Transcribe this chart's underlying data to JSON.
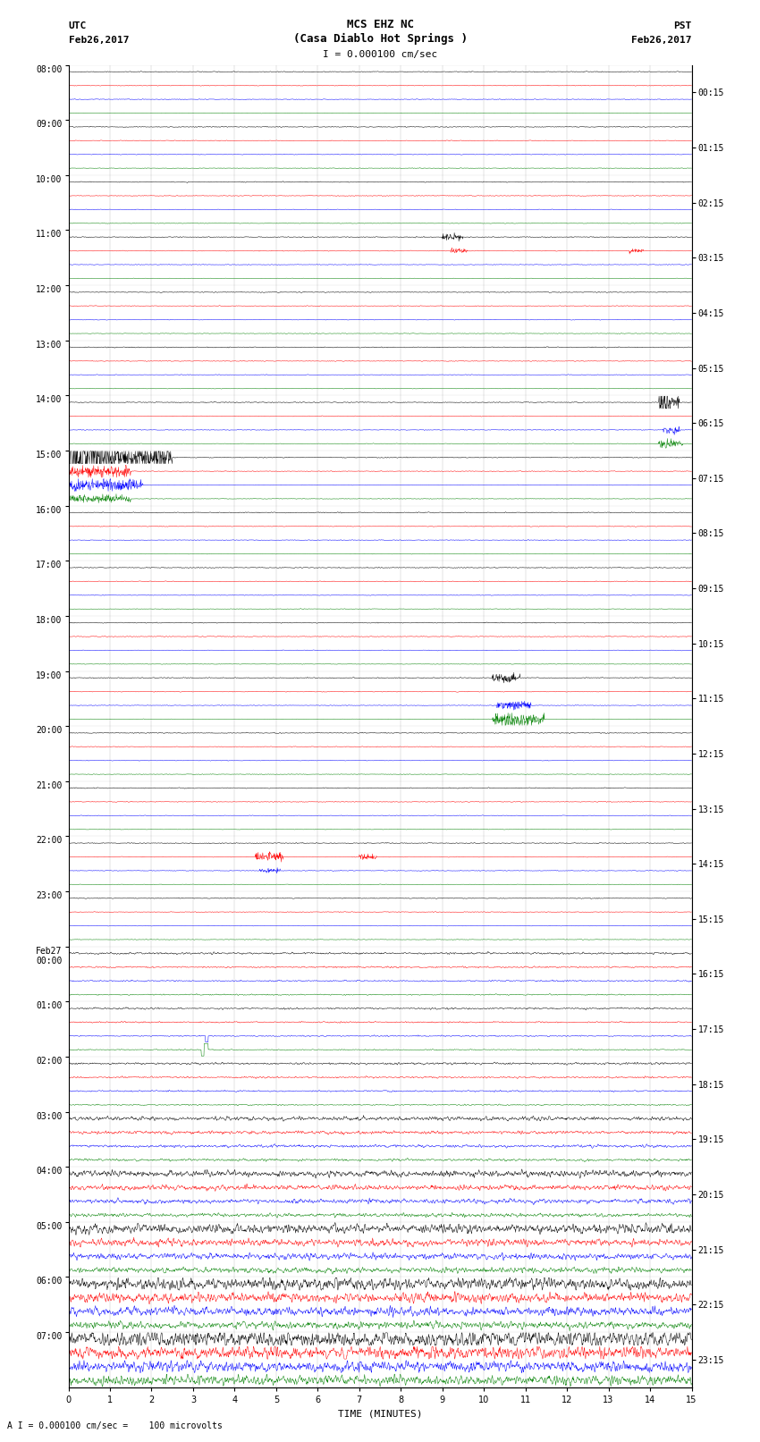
{
  "title_line1": "MCS EHZ NC",
  "title_line2": "(Casa Diablo Hot Springs )",
  "scale_label": "I = 0.000100 cm/sec",
  "bottom_label": "A I = 0.000100 cm/sec =    100 microvolts",
  "utc_label": "UTC",
  "utc_date": "Feb26,2017",
  "pst_label": "PST",
  "pst_date": "Feb26,2017",
  "xlabel": "TIME (MINUTES)",
  "left_times": [
    "08:00",
    "09:00",
    "10:00",
    "11:00",
    "12:00",
    "13:00",
    "14:00",
    "15:00",
    "16:00",
    "17:00",
    "18:00",
    "19:00",
    "20:00",
    "21:00",
    "22:00",
    "23:00",
    "Feb27\n00:00",
    "01:00",
    "02:00",
    "03:00",
    "04:00",
    "05:00",
    "06:00",
    "07:00"
  ],
  "right_times": [
    "00:15",
    "01:15",
    "02:15",
    "03:15",
    "04:15",
    "05:15",
    "06:15",
    "07:15",
    "08:15",
    "09:15",
    "10:15",
    "11:15",
    "12:15",
    "13:15",
    "14:15",
    "15:15",
    "16:15",
    "17:15",
    "18:15",
    "19:15",
    "20:15",
    "21:15",
    "22:15",
    "23:15"
  ],
  "n_traces": 24,
  "n_colors": 4,
  "colors": [
    "black",
    "red",
    "blue",
    "green"
  ],
  "xmin": 0,
  "xmax": 15,
  "xticks": [
    0,
    1,
    2,
    3,
    4,
    5,
    6,
    7,
    8,
    9,
    10,
    11,
    12,
    13,
    14,
    15
  ],
  "background_color": "white",
  "base_amp": 0.006,
  "noise_seed": 42,
  "title_fontsize": 9,
  "label_fontsize": 7,
  "tick_fontsize": 7,
  "n_samples": 1800
}
